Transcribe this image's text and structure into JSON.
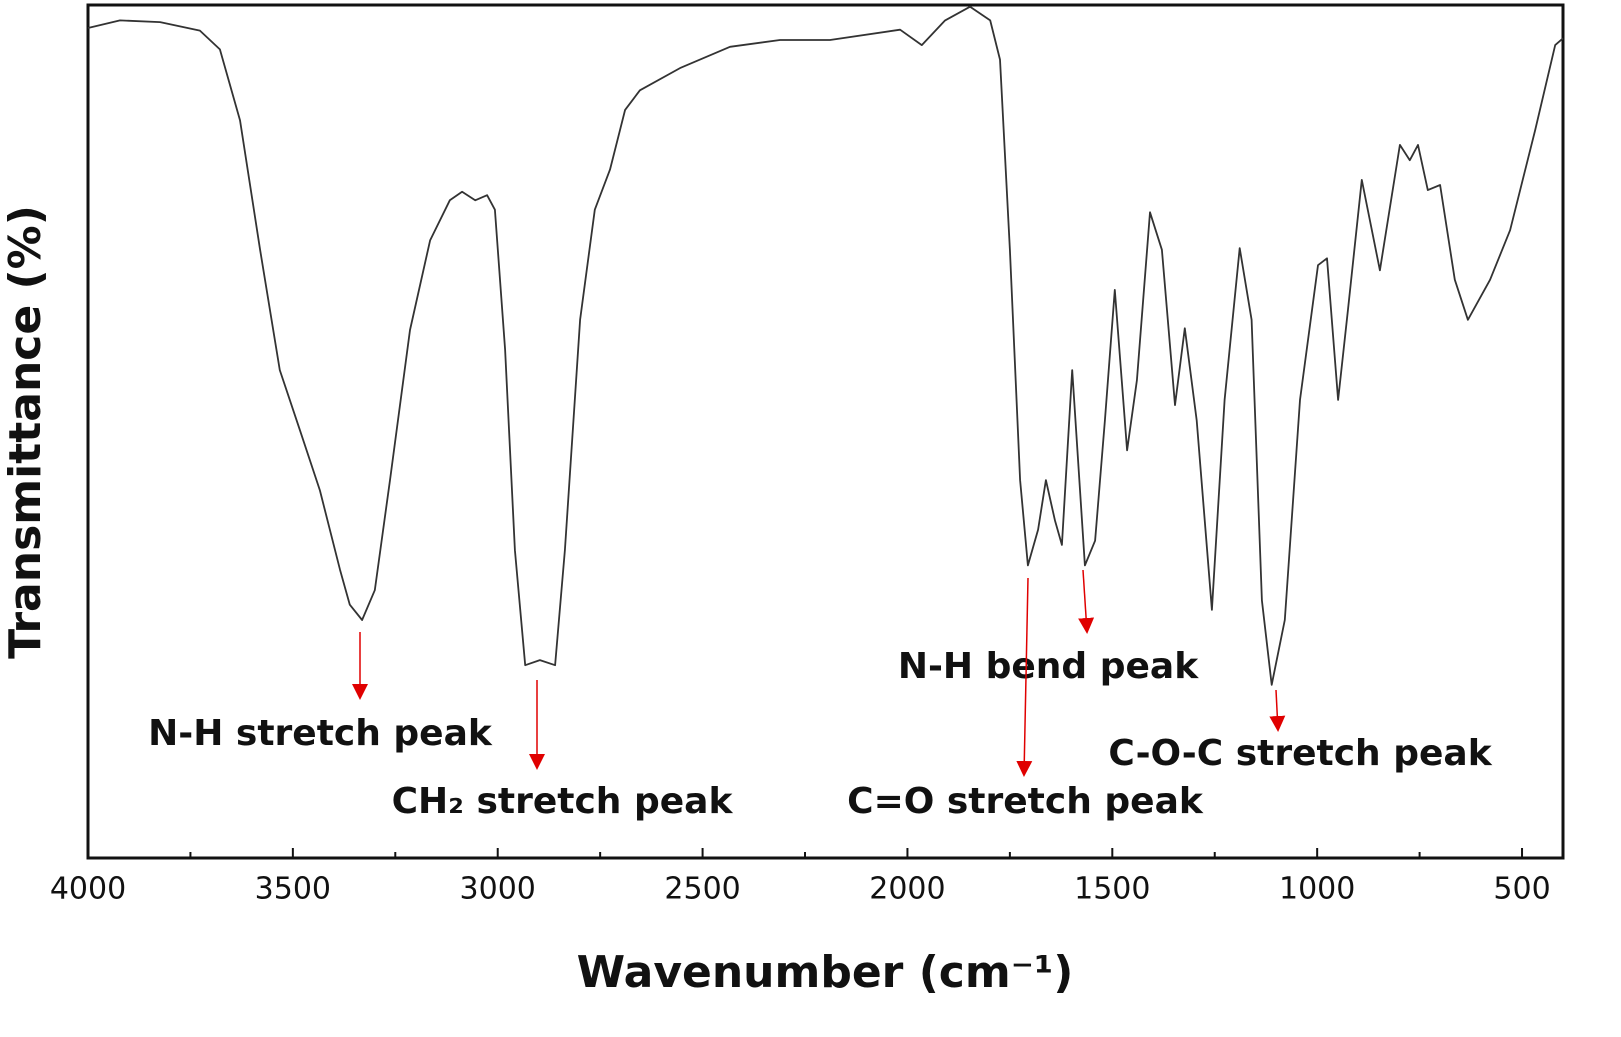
{
  "chart_data": {
    "type": "line",
    "x_label": "Wavenumber (cm⁻¹)",
    "y_label": "Transmittance (%)",
    "xlim": [
      4000,
      400
    ],
    "ylim": [
      0,
      100
    ],
    "xticks": [
      4000,
      3500,
      3000,
      2500,
      2000,
      1500,
      1000,
      500
    ],
    "xminor_ticks": [
      3750,
      3250,
      2750,
      2250,
      1750,
      1250,
      750
    ],
    "color": "#333333",
    "annotation_color": "#e00000",
    "x": [
      4000,
      3922,
      3824,
      3727,
      3678,
      3629,
      3580,
      3532,
      3483,
      3434,
      3385,
      3361,
      3331,
      3300,
      3263,
      3214,
      3165,
      3117,
      3087,
      3055,
      3026,
      3007,
      2982,
      2958,
      2933,
      2897,
      2860,
      2836,
      2799,
      2763,
      2726,
      2689,
      2653,
      2555,
      2433,
      2311,
      2189,
      2018,
      1965,
      1908,
      1847,
      1798,
      1774,
      1750,
      1725,
      1706,
      1681,
      1662,
      1640,
      1623,
      1598,
      1567,
      1542,
      1518,
      1494,
      1464,
      1440,
      1408,
      1379,
      1347,
      1323,
      1294,
      1257,
      1226,
      1189,
      1160,
      1135,
      1111,
      1079,
      1042,
      998,
      976,
      949,
      925,
      891,
      847,
      798,
      774,
      754,
      730,
      700,
      664,
      632,
      578,
      529,
      468,
      419,
      400
    ],
    "values": [
      97.3,
      98.2,
      98,
      97,
      94.8,
      86.5,
      71.3,
      57.2,
      50.2,
      43.1,
      33.8,
      29.7,
      27.9,
      31.4,
      44.3,
      61.9,
      72.4,
      77.1,
      78.1,
      77.1,
      77.7,
      76,
      59.6,
      36.1,
      22.6,
      23.2,
      22.6,
      36.1,
      63.1,
      76,
      80.7,
      87.7,
      90,
      92.6,
      95.1,
      95.9,
      95.9,
      97.1,
      95.3,
      98.2,
      99.8,
      98.2,
      93.6,
      71.3,
      44.3,
      34.3,
      38.5,
      44.3,
      39.6,
      36.7,
      57.2,
      34.3,
      37.2,
      51.3,
      66.6,
      47.8,
      56,
      75.7,
      71.3,
      53.1,
      62.1,
      51.3,
      29.1,
      53.7,
      71.5,
      63.1,
      30.2,
      20.3,
      27.9,
      53.7,
      69.5,
      70.3,
      53.7,
      64.2,
      79.5,
      68.9,
      83.6,
      81.8,
      83.6,
      78.3,
      78.9,
      67.8,
      63.1,
      67.8,
      73.6,
      85.3,
      95.3,
      96.1
    ],
    "annotations": [
      {
        "text": "N-H stretch peak"
      },
      {
        "text": "CH₂ stretch peak"
      },
      {
        "text": "N-H bend peak"
      },
      {
        "text": "C=O stretch peak"
      },
      {
        "text": "C-O-C stretch peak"
      }
    ]
  }
}
